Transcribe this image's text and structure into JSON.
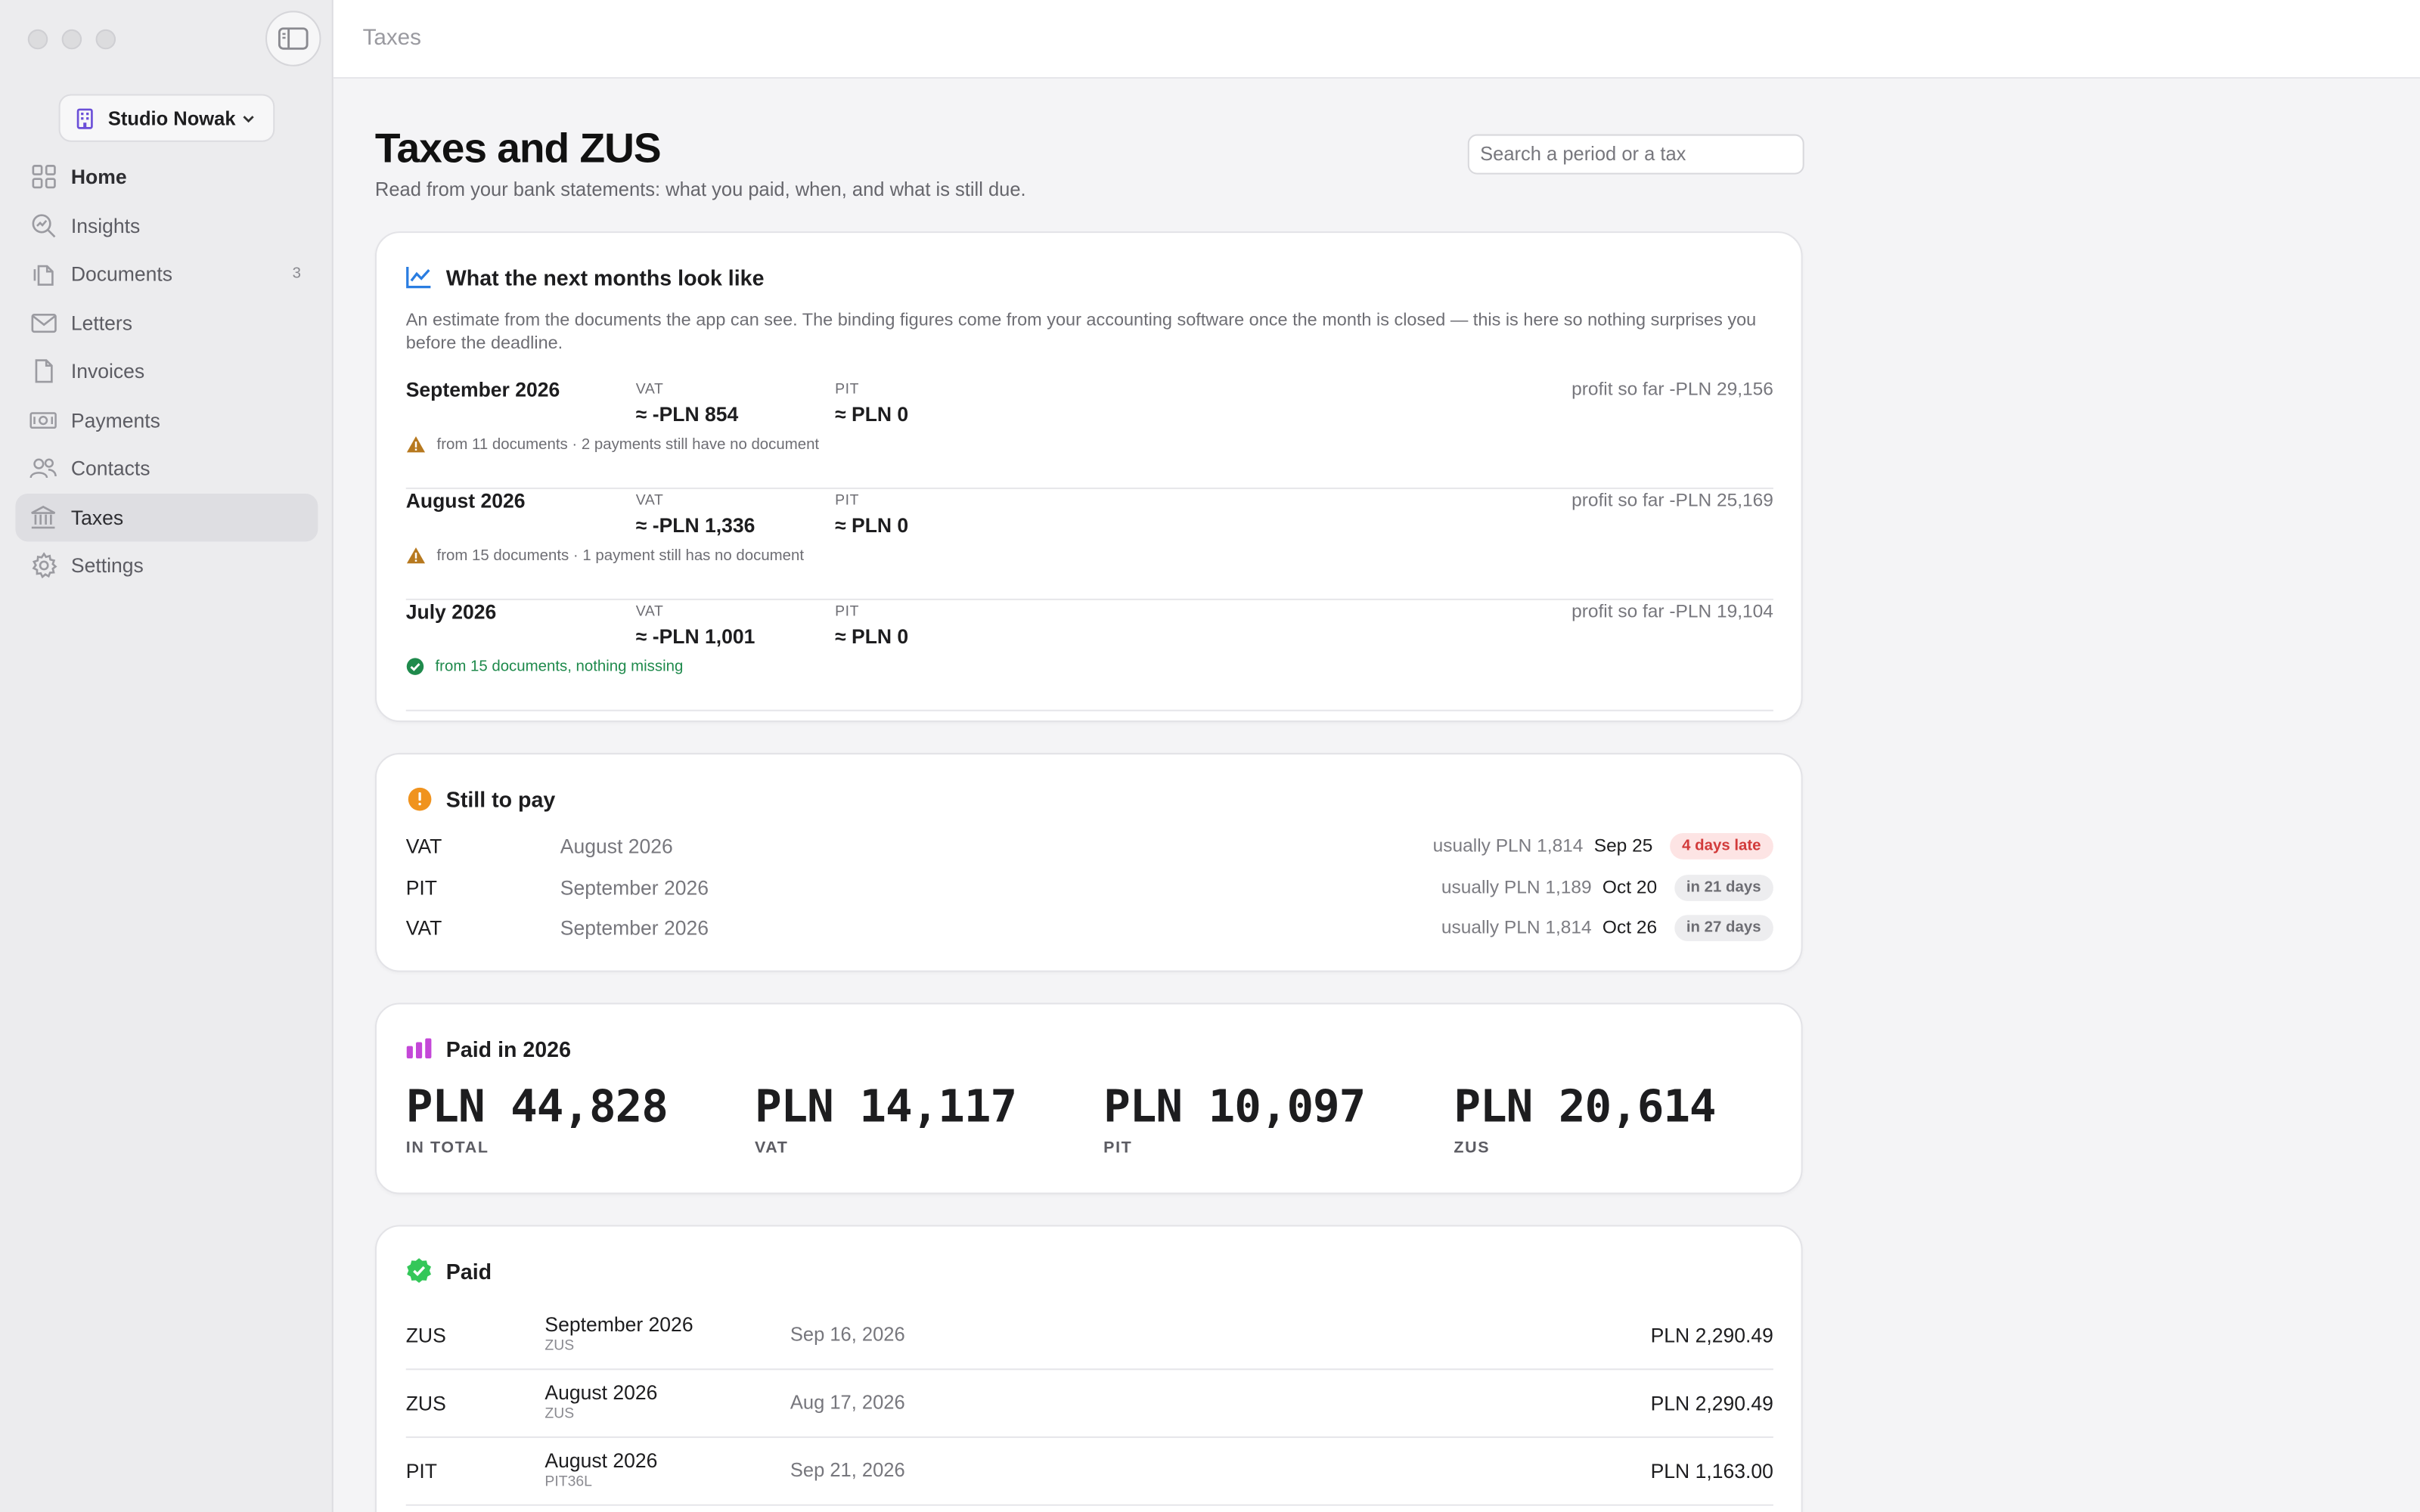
{
  "window": {
    "title": "Taxes"
  },
  "sidebar": {
    "org_name": "Studio Nowak",
    "items": [
      {
        "label": "Home",
        "icon": "grid-icon"
      },
      {
        "label": "Insights",
        "icon": "magnifier-chart-icon"
      },
      {
        "label": "Documents",
        "icon": "documents-icon",
        "count": "3"
      },
      {
        "label": "Letters",
        "icon": "envelope-icon"
      },
      {
        "label": "Invoices",
        "icon": "invoice-icon"
      },
      {
        "label": "Payments",
        "icon": "banknote-icon"
      },
      {
        "label": "Contacts",
        "icon": "people-icon"
      },
      {
        "label": "Taxes",
        "icon": "bank-icon",
        "active": true
      },
      {
        "label": "Settings",
        "icon": "gear-icon"
      }
    ]
  },
  "header": {
    "title": "Taxes and ZUS",
    "subtitle": "Read from your bank statements: what you paid, when, and what is still due.",
    "search_placeholder": "Search a period or a tax"
  },
  "forecast": {
    "title": "What the next months look like",
    "description": "An estimate from the documents the app can see. The binding figures come from your accounting software once the month is closed — this is here so nothing surprises you before the deadline.",
    "vat_label": "VAT",
    "pit_label": "PIT",
    "months": [
      {
        "month": "September 2026",
        "vat": "≈ -PLN 854",
        "pit": "≈ PLN 0",
        "profit": "profit so far -PLN 29,156",
        "note": "from 11 documents · 2 payments still have no document",
        "status": "warning"
      },
      {
        "month": "August 2026",
        "vat": "≈ -PLN 1,336",
        "pit": "≈ PLN 0",
        "profit": "profit so far -PLN 25,169",
        "note": "from 15 documents · 1 payment still has no document",
        "status": "warning"
      },
      {
        "month": "July 2026",
        "vat": "≈ -PLN 1,001",
        "pit": "≈ PLN 0",
        "profit": "profit so far -PLN 19,104",
        "note": "from 15 documents, nothing missing",
        "status": "ok"
      }
    ]
  },
  "still_to_pay": {
    "title": "Still to pay",
    "rows": [
      {
        "tax": "VAT",
        "period": "August 2026",
        "usual": "usually PLN 1,814",
        "date": "Sep 25",
        "badge": "4 days late",
        "badge_type": "late"
      },
      {
        "tax": "PIT",
        "period": "September 2026",
        "usual": "usually PLN 1,189",
        "date": "Oct 20",
        "badge": "in 21 days",
        "badge_type": "soon"
      },
      {
        "tax": "VAT",
        "period": "September 2026",
        "usual": "usually PLN 1,814",
        "date": "Oct 26",
        "badge": "in 27 days",
        "badge_type": "soon"
      }
    ]
  },
  "paid_totals": {
    "title": "Paid in 2026",
    "items": [
      {
        "amount": "PLN 44,828",
        "label": "IN TOTAL"
      },
      {
        "amount": "PLN 14,117",
        "label": "VAT"
      },
      {
        "amount": "PLN 10,097",
        "label": "PIT"
      },
      {
        "amount": "PLN 20,614",
        "label": "ZUS"
      }
    ]
  },
  "paid": {
    "title": "Paid",
    "rows": [
      {
        "tax": "ZUS",
        "period": "September 2026",
        "form": "ZUS",
        "date": "Sep 16, 2026",
        "amount": "PLN 2,290.49"
      },
      {
        "tax": "ZUS",
        "period": "August 2026",
        "form": "ZUS",
        "date": "Aug 17, 2026",
        "amount": "PLN 2,290.49"
      },
      {
        "tax": "PIT",
        "period": "August 2026",
        "form": "PIT36L",
        "date": "Sep 21, 2026",
        "amount": "PLN 1,163.00"
      }
    ]
  },
  "colors": {
    "accent_blue": "#2a7de1",
    "warning": "#b7791f",
    "ok_green": "#1f8a4c",
    "late_red": "#d23b3b",
    "orange": "#f0931e",
    "purple": "#c447d8",
    "green_badge": "#34c759"
  }
}
